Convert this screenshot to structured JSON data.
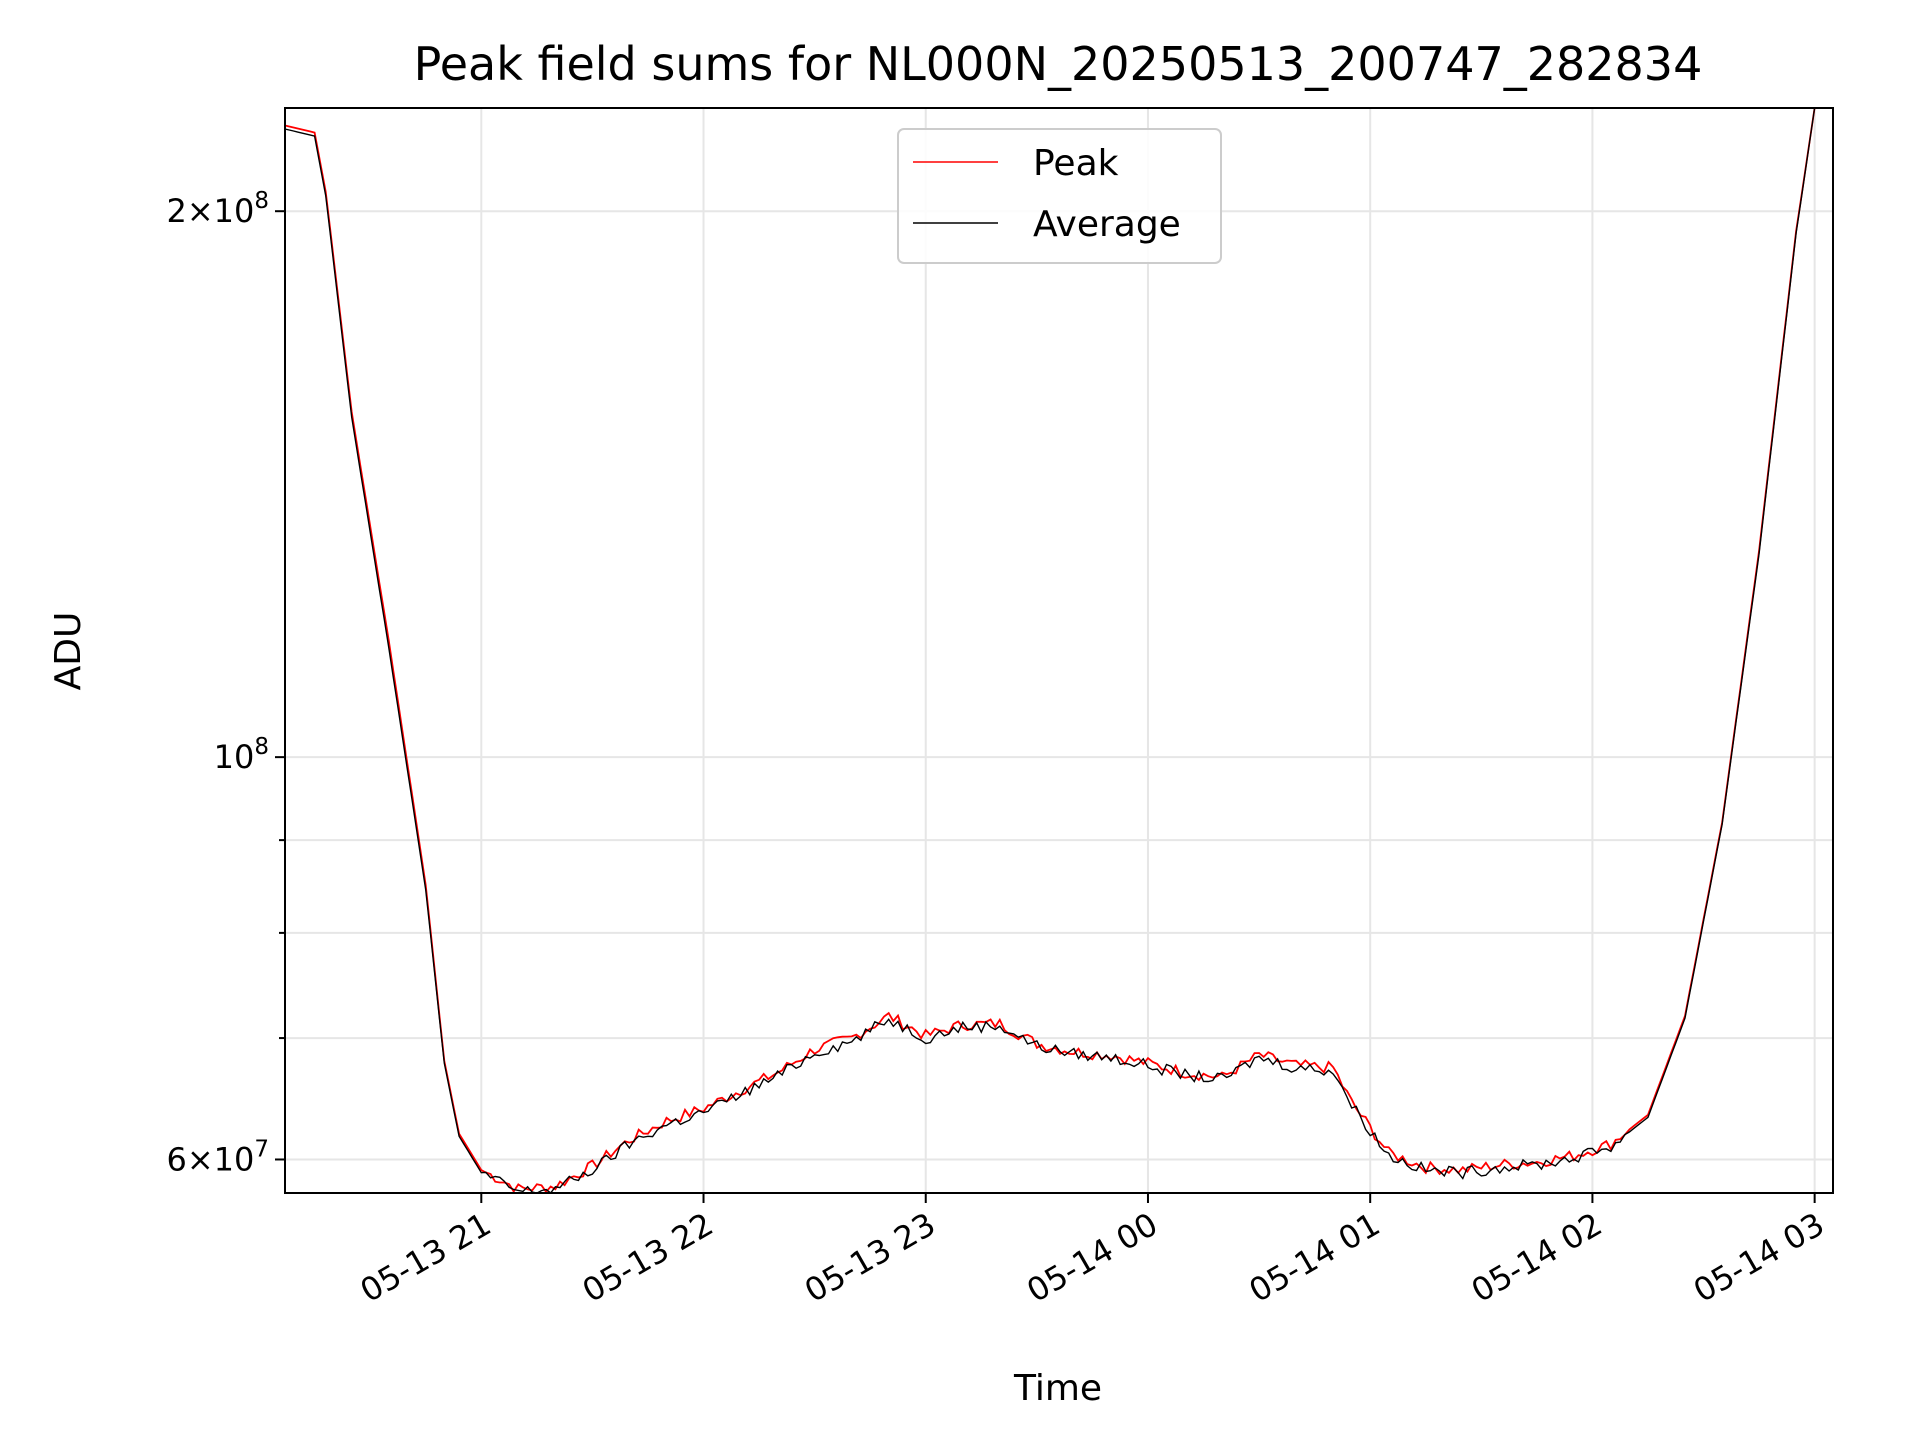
{
  "chart_data": {
    "type": "line",
    "title": "Peak field sums for NL000N_20250513_200747_282834",
    "xlabel": "Time",
    "ylabel": "ADU",
    "yscale": "log",
    "ylim": [
      57500000,
      228000000
    ],
    "xlim": [
      "2025-05-13 20:07",
      "2025-05-14 03:00"
    ],
    "grid": true,
    "legend_position": "top-center",
    "x_ticks": [
      {
        "t": "2025-05-13 21:00",
        "label": "05-13 21"
      },
      {
        "t": "2025-05-13 22:00",
        "label": "05-13 22"
      },
      {
        "t": "2025-05-13 23:00",
        "label": "05-13 23"
      },
      {
        "t": "2025-05-14 00:00",
        "label": "05-14 00"
      },
      {
        "t": "2025-05-14 01:00",
        "label": "05-14 01"
      },
      {
        "t": "2025-05-14 02:00",
        "label": "05-14 02"
      },
      {
        "t": "2025-05-14 03:00",
        "label": "05-14 03"
      }
    ],
    "y_ticks": [
      {
        "v": 60000000,
        "base": "6",
        "exp": "7"
      },
      {
        "v": 100000000,
        "base": "",
        "exp": "8"
      },
      {
        "v": 200000000,
        "base": "2",
        "exp": "8"
      }
    ],
    "y_minor_ticks": [
      70000000,
      80000000,
      90000000
    ],
    "series": [
      {
        "name": "Peak",
        "color": "#ff0000",
        "x": [
          "2025-05-13 20:07",
          "2025-05-13 20:15",
          "2025-05-13 20:18",
          "2025-05-13 20:25",
          "2025-05-13 20:35",
          "2025-05-13 20:45",
          "2025-05-13 20:50",
          "2025-05-13 20:54",
          "2025-05-13 21:00",
          "2025-05-13 21:10",
          "2025-05-13 21:20",
          "2025-05-13 21:30",
          "2025-05-13 21:40",
          "2025-05-13 21:50",
          "2025-05-13 22:00",
          "2025-05-13 22:10",
          "2025-05-13 22:20",
          "2025-05-13 22:30",
          "2025-05-13 22:40",
          "2025-05-13 22:50",
          "2025-05-13 23:00",
          "2025-05-13 23:10",
          "2025-05-13 23:20",
          "2025-05-13 23:30",
          "2025-05-13 23:40",
          "2025-05-13 23:50",
          "2025-05-14 00:00",
          "2025-05-14 00:10",
          "2025-05-14 00:20",
          "2025-05-14 00:30",
          "2025-05-14 00:40",
          "2025-05-14 00:50",
          "2025-05-14 00:55",
          "2025-05-14 01:05",
          "2025-05-14 01:15",
          "2025-05-14 01:25",
          "2025-05-14 01:35",
          "2025-05-14 01:45",
          "2025-05-14 01:55",
          "2025-05-14 02:05",
          "2025-05-14 02:15",
          "2025-05-14 02:25",
          "2025-05-14 02:35",
          "2025-05-14 02:45",
          "2025-05-14 02:55",
          "2025-05-14 03:00"
        ],
        "y": [
          223000000,
          221000000,
          205000000,
          155000000,
          116000000,
          85000000,
          68000000,
          62000000,
          59200000,
          57800000,
          58000000,
          59500000,
          61500000,
          63000000,
          64000000,
          65500000,
          67000000,
          69000000,
          70000000,
          72000000,
          70200000,
          71200000,
          71300000,
          69500000,
          68800000,
          68500000,
          67800000,
          67000000,
          66600000,
          68500000,
          67600000,
          67400000,
          64500000,
          60500000,
          59400000,
          59200000,
          59600000,
          59800000,
          60300000,
          61200000,
          63500000,
          72000000,
          92000000,
          130000000,
          195000000,
          228000000
        ]
      },
      {
        "name": "Average",
        "color": "#000000",
        "x": [
          "2025-05-13 20:07",
          "2025-05-13 20:15",
          "2025-05-13 20:18",
          "2025-05-13 20:25",
          "2025-05-13 20:35",
          "2025-05-13 20:45",
          "2025-05-13 20:50",
          "2025-05-13 20:54",
          "2025-05-13 21:00",
          "2025-05-13 21:10",
          "2025-05-13 21:20",
          "2025-05-13 21:30",
          "2025-05-13 21:40",
          "2025-05-13 21:50",
          "2025-05-13 22:00",
          "2025-05-13 22:10",
          "2025-05-13 22:20",
          "2025-05-13 22:30",
          "2025-05-13 22:40",
          "2025-05-13 22:50",
          "2025-05-13 23:00",
          "2025-05-13 23:10",
          "2025-05-13 23:20",
          "2025-05-13 23:30",
          "2025-05-13 23:40",
          "2025-05-13 23:50",
          "2025-05-14 00:00",
          "2025-05-14 00:10",
          "2025-05-14 00:20",
          "2025-05-14 00:30",
          "2025-05-14 00:40",
          "2025-05-14 00:50",
          "2025-05-14 00:55",
          "2025-05-14 01:05",
          "2025-05-14 01:15",
          "2025-05-14 01:25",
          "2025-05-14 01:35",
          "2025-05-14 01:45",
          "2025-05-14 01:55",
          "2025-05-14 02:05",
          "2025-05-14 02:15",
          "2025-05-14 02:25",
          "2025-05-14 02:35",
          "2025-05-14 02:45",
          "2025-05-14 02:55",
          "2025-05-14 03:00"
        ],
        "y": [
          222000000,
          220000000,
          204000000,
          154000000,
          115000000,
          84500000,
          67800000,
          61800000,
          59000000,
          57600000,
          57800000,
          59200000,
          61200000,
          62700000,
          63700000,
          65200000,
          66700000,
          68700000,
          69700000,
          71700000,
          70000000,
          71000000,
          71100000,
          69300000,
          68600000,
          68300000,
          67600000,
          66800000,
          66400000,
          68300000,
          67400000,
          67200000,
          64300000,
          60300000,
          59200000,
          59000000,
          59400000,
          59600000,
          60100000,
          61000000,
          63300000,
          71800000,
          91800000,
          129500000,
          194500000,
          228000000
        ]
      }
    ]
  }
}
